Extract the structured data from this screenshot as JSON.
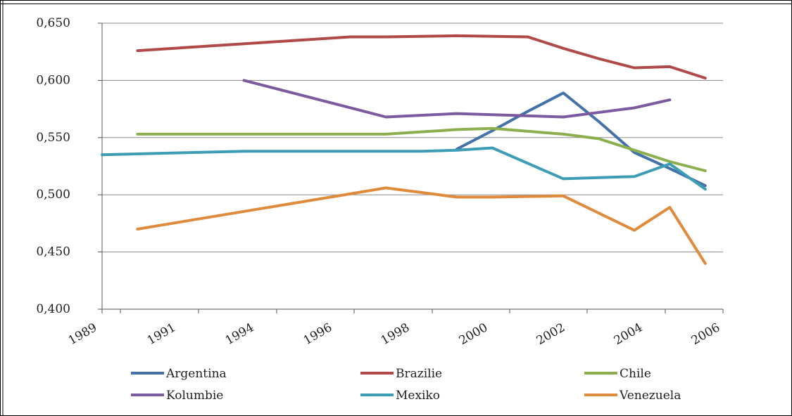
{
  "chart_data": {
    "type": "line",
    "title": "",
    "xlabel": "",
    "ylabel": "",
    "ylim": [
      0.4,
      0.65
    ],
    "yticks": [
      "0,400",
      "0,450",
      "0,500",
      "0,550",
      "0,600",
      "0,650"
    ],
    "ytick_values": [
      0.4,
      0.45,
      0.5,
      0.55,
      0.6,
      0.65
    ],
    "x": [
      "1989",
      "1990",
      "1991",
      "1992",
      "1993",
      "1994",
      "1995",
      "1996",
      "1997",
      "1998",
      "1999",
      "2000",
      "2001",
      "2002",
      "2003",
      "2004",
      "2005",
      "2006"
    ],
    "xtick_labels": [
      "1989",
      "1991",
      "1994",
      "1996",
      "1998",
      "2000",
      "2002",
      "2004",
      "2006"
    ],
    "xtick_label_x": [
      "1989",
      "1990",
      "1991",
      "1992",
      "1993",
      "1994",
      "1995",
      "1996",
      "1997",
      "1998",
      "1999",
      "2000",
      "2001",
      "2002",
      "2003",
      "2004",
      "2005",
      "2006"
    ],
    "grid": true,
    "legend_position": "bottom",
    "series": [
      {
        "name": "Argentina",
        "color": "#4472a8",
        "values": [
          null,
          null,
          null,
          null,
          null,
          null,
          null,
          null,
          null,
          null,
          0.54,
          0.556,
          0.573,
          0.589,
          0.564,
          0.537,
          0.523,
          0.508
        ]
      },
      {
        "name": "Brazilie",
        "color": "#b04a48",
        "values": [
          null,
          0.626,
          null,
          null,
          null,
          0.634,
          null,
          0.638,
          0.638,
          null,
          0.639,
          null,
          0.638,
          0.628,
          0.619,
          0.611,
          0.612,
          0.602
        ]
      },
      {
        "name": "Chile",
        "color": "#8caf4e",
        "values": [
          null,
          0.553,
          null,
          null,
          null,
          null,
          null,
          null,
          0.553,
          null,
          0.557,
          0.558,
          null,
          0.553,
          0.549,
          0.539,
          0.529,
          0.521
        ]
      },
      {
        "name": "Kolumbie",
        "color": "#7b5aa0",
        "values": [
          null,
          null,
          null,
          null,
          0.6,
          null,
          null,
          null,
          0.568,
          null,
          0.571,
          null,
          null,
          0.568,
          null,
          0.576,
          0.583,
          null
        ]
      },
      {
        "name": "Mexiko",
        "color": "#3d9db5",
        "values": [
          0.535,
          null,
          null,
          null,
          0.538,
          null,
          null,
          null,
          null,
          0.538,
          0.539,
          0.541,
          null,
          0.514,
          null,
          0.516,
          0.527,
          0.505
        ]
      },
      {
        "name": "Venezuela",
        "color": "#e08a3c",
        "values": [
          null,
          0.47,
          null,
          null,
          null,
          null,
          null,
          null,
          0.506,
          null,
          0.498,
          0.498,
          null,
          0.499,
          null,
          0.469,
          0.489,
          0.44
        ]
      }
    ]
  }
}
